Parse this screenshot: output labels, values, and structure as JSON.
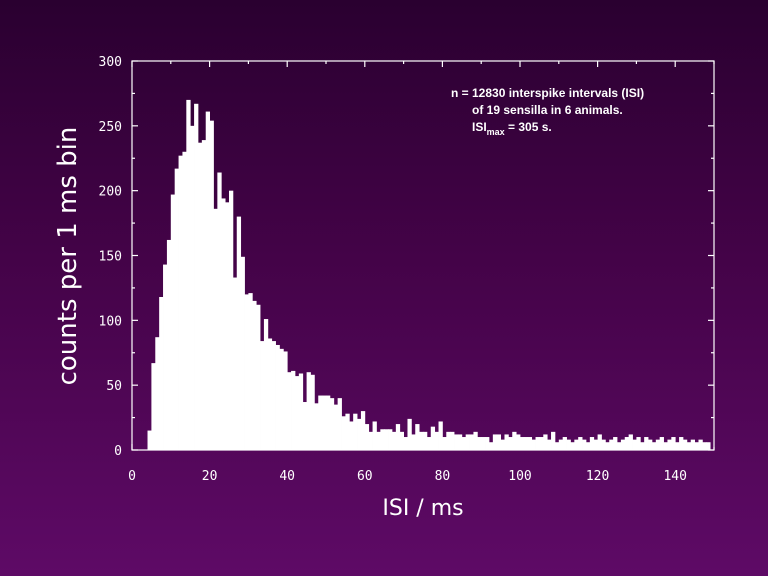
{
  "chart_data": {
    "type": "bar",
    "title": "",
    "xlabel": "ISI / ms",
    "ylabel": "counts per 1 ms bin",
    "xlim": [
      0,
      150
    ],
    "ylim": [
      0,
      300
    ],
    "x_ticks": [
      0,
      20,
      40,
      60,
      80,
      100,
      120,
      140
    ],
    "y_ticks": [
      0,
      50,
      100,
      150,
      200,
      250,
      300
    ],
    "bin_width_ms": 1,
    "x_start": 4,
    "values": [
      15,
      67,
      87,
      118,
      143,
      162,
      197,
      217,
      227,
      230,
      270,
      250,
      267,
      237,
      239,
      261,
      254,
      186,
      214,
      194,
      191,
      200,
      133,
      180,
      149,
      120,
      121,
      115,
      112,
      84,
      101,
      86,
      84,
      81,
      78,
      76,
      60,
      61,
      57,
      59,
      37,
      60,
      58,
      36,
      42,
      42,
      42,
      40,
      35,
      40,
      26,
      28,
      22,
      28,
      24,
      30,
      20,
      14,
      22,
      14,
      16,
      16,
      16,
      14,
      20,
      14,
      10,
      24,
      12,
      20,
      14,
      14,
      10,
      18,
      14,
      22,
      10,
      14,
      14,
      12,
      12,
      10,
      12,
      12,
      14,
      10,
      10,
      10,
      6,
      12,
      12,
      8,
      12,
      10,
      14,
      12,
      10,
      10,
      10,
      8,
      10,
      10,
      12,
      8,
      14,
      6,
      8,
      10,
      8,
      6,
      8,
      10,
      8,
      6,
      10,
      8,
      12,
      8,
      6,
      8,
      10,
      6,
      8,
      10,
      12,
      8,
      10,
      6,
      10,
      8,
      6,
      8,
      10,
      6,
      8,
      10,
      6,
      10,
      8,
      6,
      8,
      6,
      8,
      6,
      6
    ],
    "annotation": {
      "line1": "n = 12830 interspike intervals (ISI)",
      "line2": "of 19 sensilla in 6 animals.",
      "line3_main": "ISI",
      "line3_sub": "max",
      "line3_rest": " = 305 s."
    },
    "colors": {
      "bars": "#ffffff",
      "axes": "#ffffff"
    },
    "legend": "none",
    "grid": false
  }
}
